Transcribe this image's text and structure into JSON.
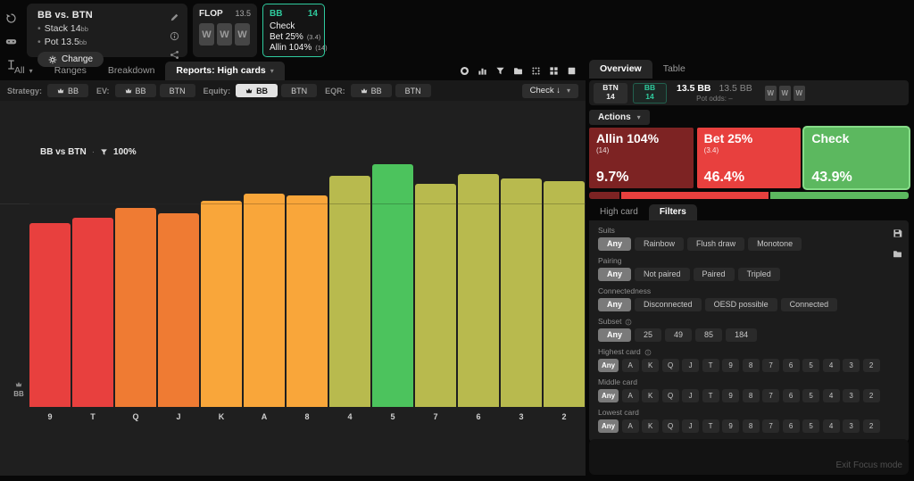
{
  "colors": {
    "accent_green": "#2fcb9e",
    "action_allin": "#7d2323",
    "action_bet": "#e8403e",
    "action_check": "#5cb85f",
    "check_selected_border": "#86dc88"
  },
  "sidebar": {
    "icons": [
      "history-icon",
      "gamepad-icon",
      "ibeam-icon"
    ]
  },
  "header": {
    "match": {
      "title": "BB vs. BTN",
      "lines": [
        {
          "text": "Stack 14",
          "unit": "bb"
        },
        {
          "text": "Pot 13.5",
          "unit": "bb"
        }
      ],
      "change_label": "Change",
      "side_icons": [
        "pencil-icon",
        "info-icon",
        "share-icon"
      ]
    },
    "flop": {
      "label": "FLOP",
      "pot": "13.5",
      "cards": [
        "W",
        "W",
        "W"
      ]
    },
    "node": {
      "player": "BB",
      "stack": "14",
      "actions": [
        {
          "label": "Check",
          "detail": ""
        },
        {
          "label": "Bet 25%",
          "detail": "(3.4)"
        },
        {
          "label": "Allin 104%",
          "detail": "(14)"
        }
      ]
    }
  },
  "tabbar": {
    "tabs": [
      {
        "label": "All",
        "caret": true,
        "active": false
      },
      {
        "label": "Ranges",
        "caret": false,
        "active": false
      },
      {
        "label": "Breakdown",
        "caret": false,
        "active": false
      },
      {
        "label": "Reports: High cards",
        "caret": true,
        "active": true
      }
    ],
    "icons": [
      "donut-chart-icon",
      "bar-chart-icon",
      "filter-icon",
      "folder-icon",
      "dots-view-icon",
      "grid-view-icon",
      "square-view-icon"
    ]
  },
  "strategy_row": {
    "groups": [
      {
        "label": "Strategy:",
        "buttons": [
          {
            "label": "BB",
            "crown": true,
            "active": false
          }
        ]
      },
      {
        "label": "EV:",
        "buttons": [
          {
            "label": "BB",
            "crown": true,
            "active": false
          },
          {
            "label": "BTN",
            "crown": false,
            "active": false
          }
        ]
      },
      {
        "label": "Equity:",
        "buttons": [
          {
            "label": "BB",
            "crown": true,
            "active": true
          },
          {
            "label": "BTN",
            "crown": false,
            "active": false
          }
        ]
      },
      {
        "label": "EQR:",
        "buttons": [
          {
            "label": "BB",
            "crown": true,
            "active": false
          },
          {
            "label": "BTN",
            "crown": false,
            "active": false
          }
        ]
      }
    ],
    "action_select": {
      "label": "Check ↓"
    }
  },
  "chart_data": {
    "type": "bar",
    "title": "BB vs BTN",
    "filter_pct": "100%",
    "axis_player": "BB",
    "categories": [
      "9",
      "T",
      "Q",
      "J",
      "K",
      "A",
      "8",
      "4",
      "5",
      "7",
      "6",
      "3",
      "2"
    ],
    "values": [
      75,
      77,
      81,
      79,
      84,
      87,
      86,
      94,
      99,
      91,
      95,
      93,
      92
    ],
    "colors": [
      "#e8403e",
      "#e8403e",
      "#ef7b33",
      "#ef7b33",
      "#f9a63a",
      "#f9a63a",
      "#f9a63a",
      "#b8ba4e",
      "#4cc35d",
      "#b8ba4e",
      "#b8ba4e",
      "#b8ba4e",
      "#b8ba4e"
    ],
    "ylim": [
      0,
      100
    ],
    "xlabel": "",
    "ylabel": "",
    "legend": "none",
    "grid": "single faint horizontal line at ~42% height"
  },
  "right_panel": {
    "tabs": [
      {
        "label": "Overview",
        "active": true
      },
      {
        "label": "Table",
        "active": false
      }
    ],
    "players": {
      "btn_name": "BTN",
      "btn_stack": "14",
      "bb_name": "BB",
      "bb_stack": "14",
      "pot_primary": "13.5 BB",
      "pot_secondary": "13.5 BB",
      "pot_odds_label": "Pot odds:",
      "pot_odds_value": "–",
      "cards": [
        "W",
        "W",
        "W"
      ]
    },
    "actions_label": "Actions",
    "actions": [
      {
        "label": "Allin 104%",
        "detail": "(14)",
        "freq": "9.7%",
        "pct": 9.7,
        "color": "#7d2323",
        "selected": false
      },
      {
        "label": "Bet 25%",
        "detail": "(3.4)",
        "freq": "46.4%",
        "pct": 46.4,
        "color": "#e8403e",
        "selected": false
      },
      {
        "label": "Check",
        "detail": "",
        "freq": "43.9%",
        "pct": 43.9,
        "color": "#5cb85f",
        "selected": true
      }
    ],
    "filter_tabs": [
      {
        "label": "High card",
        "active": false
      },
      {
        "label": "Filters",
        "active": true
      }
    ],
    "filter_side_icons": [
      "save-icon",
      "folder-icon"
    ],
    "filters": [
      {
        "label": "Suits",
        "info": false,
        "ranks": false,
        "options": [
          "Any",
          "Rainbow",
          "Flush draw",
          "Monotone"
        ],
        "selected": 0
      },
      {
        "label": "Pairing",
        "info": false,
        "ranks": false,
        "options": [
          "Any",
          "Not paired",
          "Paired",
          "Tripled"
        ],
        "selected": 0
      },
      {
        "label": "Connectedness",
        "info": false,
        "ranks": false,
        "options": [
          "Any",
          "Disconnected",
          "OESD possible",
          "Connected"
        ],
        "selected": 0
      },
      {
        "label": "Subset",
        "info": true,
        "ranks": false,
        "options": [
          "Any",
          "25",
          "49",
          "85",
          "184"
        ],
        "selected": 0
      },
      {
        "label": "Highest card",
        "info": true,
        "ranks": true,
        "options": [
          "Any",
          "A",
          "K",
          "Q",
          "J",
          "T",
          "9",
          "8",
          "7",
          "6",
          "5",
          "4",
          "3",
          "2"
        ],
        "selected": 0
      },
      {
        "label": "Middle card",
        "info": false,
        "ranks": true,
        "options": [
          "Any",
          "A",
          "K",
          "Q",
          "J",
          "T",
          "9",
          "8",
          "7",
          "6",
          "5",
          "4",
          "3",
          "2"
        ],
        "selected": 0
      },
      {
        "label": "Lowest card",
        "info": false,
        "ranks": true,
        "options": [
          "Any",
          "A",
          "K",
          "Q",
          "J",
          "T",
          "9",
          "8",
          "7",
          "6",
          "5",
          "4",
          "3",
          "2"
        ],
        "selected": 0
      }
    ],
    "exit_label": "Exit Focus mode"
  }
}
